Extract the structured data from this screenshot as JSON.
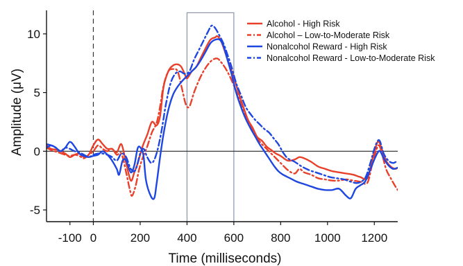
{
  "chart_data": {
    "type": "line",
    "title": "",
    "xlabel": "Time (milliseconds)",
    "ylabel": "Amplitude (μV)",
    "xlim": [
      -200,
      1300
    ],
    "ylim": [
      -6,
      12
    ],
    "x_ticks": [
      -100,
      0,
      200,
      400,
      600,
      800,
      1000,
      1200
    ],
    "y_ticks": [
      -5,
      0,
      5,
      10
    ],
    "zero_line": true,
    "stimulus_onset_line": {
      "x": 0,
      "style": "dashed"
    },
    "highlight_window": {
      "x_start": 400,
      "x_end": 600,
      "y_top": 11.8
    },
    "legend_position": "top-right",
    "series": [
      {
        "name": "Alcohol - High Risk",
        "color": "#e8402a",
        "dash": "solid",
        "points": [
          [
            -200,
            0.5
          ],
          [
            -180,
            0.2
          ],
          [
            -150,
            0.1
          ],
          [
            -120,
            -0.2
          ],
          [
            -100,
            -0.5
          ],
          [
            -80,
            -0.3
          ],
          [
            -60,
            -0.2
          ],
          [
            -40,
            -0.5
          ],
          [
            -20,
            -0.3
          ],
          [
            0,
            0.5
          ],
          [
            20,
            1.0
          ],
          [
            40,
            0.6
          ],
          [
            60,
            0.2
          ],
          [
            80,
            0.2
          ],
          [
            100,
            -0.1
          ],
          [
            120,
            0.6
          ],
          [
            140,
            -1.0
          ],
          [
            160,
            -2.5
          ],
          [
            175,
            -1.8
          ],
          [
            190,
            -1.0
          ],
          [
            210,
            0.4
          ],
          [
            230,
            1.4
          ],
          [
            250,
            2.5
          ],
          [
            270,
            2.2
          ],
          [
            285,
            3.0
          ],
          [
            300,
            5.5
          ],
          [
            320,
            6.8
          ],
          [
            340,
            7.3
          ],
          [
            360,
            7.4
          ],
          [
            375,
            7.2
          ],
          [
            390,
            6.6
          ],
          [
            400,
            6.2
          ],
          [
            420,
            6.8
          ],
          [
            440,
            7.2
          ],
          [
            460,
            8.0
          ],
          [
            480,
            8.8
          ],
          [
            500,
            9.5
          ],
          [
            520,
            9.7
          ],
          [
            530,
            9.8
          ],
          [
            545,
            9.4
          ],
          [
            560,
            8.6
          ],
          [
            580,
            7.4
          ],
          [
            600,
            6.3
          ],
          [
            620,
            5.0
          ],
          [
            640,
            3.8
          ],
          [
            660,
            2.7
          ],
          [
            680,
            2.0
          ],
          [
            700,
            1.2
          ],
          [
            720,
            0.9
          ],
          [
            740,
            0.4
          ],
          [
            760,
            0.1
          ],
          [
            780,
            -0.2
          ],
          [
            800,
            -0.4
          ],
          [
            830,
            -0.8
          ],
          [
            860,
            -0.7
          ],
          [
            880,
            -0.5
          ],
          [
            900,
            -0.6
          ],
          [
            930,
            -0.9
          ],
          [
            960,
            -1.3
          ],
          [
            990,
            -1.5
          ],
          [
            1020,
            -1.7
          ],
          [
            1050,
            -1.8
          ],
          [
            1080,
            -1.9
          ],
          [
            1110,
            -2.0
          ],
          [
            1140,
            -2.2
          ],
          [
            1170,
            -2.3
          ],
          [
            1190,
            -0.8
          ],
          [
            1210,
            0.6
          ],
          [
            1220,
            0.8
          ],
          [
            1230,
            0.3
          ],
          [
            1250,
            -0.8
          ],
          [
            1270,
            -1.3
          ],
          [
            1290,
            -1.5
          ],
          [
            1300,
            -1.4
          ]
        ]
      },
      {
        "name": "Alcohol – Low-to-Moderate Risk",
        "color": "#e8402a",
        "dash": "dashdot",
        "points": [
          [
            -200,
            0.3
          ],
          [
            -180,
            0.1
          ],
          [
            -150,
            -0.1
          ],
          [
            -120,
            -0.3
          ],
          [
            -100,
            -0.4
          ],
          [
            -80,
            -0.3
          ],
          [
            -60,
            -0.4
          ],
          [
            -40,
            -0.6
          ],
          [
            -20,
            -0.3
          ],
          [
            0,
            0.0
          ],
          [
            20,
            0.5
          ],
          [
            40,
            0.2
          ],
          [
            60,
            0.0
          ],
          [
            80,
            0.2
          ],
          [
            100,
            -0.3
          ],
          [
            120,
            -0.2
          ],
          [
            140,
            -1.8
          ],
          [
            155,
            -3.2
          ],
          [
            165,
            -3.8
          ],
          [
            180,
            -3.0
          ],
          [
            195,
            -1.6
          ],
          [
            210,
            -0.6
          ],
          [
            230,
            0.4
          ],
          [
            250,
            1.6
          ],
          [
            270,
            2.4
          ],
          [
            285,
            3.8
          ],
          [
            300,
            5.6
          ],
          [
            320,
            6.8
          ],
          [
            340,
            7.0
          ],
          [
            360,
            6.8
          ],
          [
            380,
            5.2
          ],
          [
            395,
            4.0
          ],
          [
            410,
            3.8
          ],
          [
            430,
            5.0
          ],
          [
            450,
            6.0
          ],
          [
            470,
            6.8
          ],
          [
            490,
            7.4
          ],
          [
            510,
            7.8
          ],
          [
            530,
            7.9
          ],
          [
            545,
            7.6
          ],
          [
            560,
            7.2
          ],
          [
            580,
            6.5
          ],
          [
            600,
            5.6
          ],
          [
            620,
            4.6
          ],
          [
            640,
            3.6
          ],
          [
            660,
            2.6
          ],
          [
            680,
            1.8
          ],
          [
            700,
            1.1
          ],
          [
            720,
            0.6
          ],
          [
            740,
            0.2
          ],
          [
            760,
            -0.2
          ],
          [
            780,
            -0.6
          ],
          [
            800,
            -1.0
          ],
          [
            830,
            -1.6
          ],
          [
            860,
            -1.9
          ],
          [
            880,
            -1.5
          ],
          [
            900,
            -1.8
          ],
          [
            930,
            -2.0
          ],
          [
            960,
            -2.3
          ],
          [
            990,
            -2.4
          ],
          [
            1020,
            -2.5
          ],
          [
            1050,
            -2.5
          ],
          [
            1080,
            -2.4
          ],
          [
            1110,
            -2.5
          ],
          [
            1140,
            -2.6
          ],
          [
            1170,
            -2.7
          ],
          [
            1190,
            -1.2
          ],
          [
            1210,
            0.2
          ],
          [
            1220,
            0.5
          ],
          [
            1230,
            0.0
          ],
          [
            1250,
            -1.5
          ],
          [
            1270,
            -2.3
          ],
          [
            1290,
            -3.0
          ],
          [
            1300,
            -3.3
          ]
        ]
      },
      {
        "name": "Nonalcohol Reward - High Risk",
        "color": "#1e46e0",
        "dash": "solid",
        "points": [
          [
            -200,
            0.3
          ],
          [
            -180,
            0.5
          ],
          [
            -160,
            0.3
          ],
          [
            -140,
            0.0
          ],
          [
            -120,
            0.3
          ],
          [
            -100,
            0.8
          ],
          [
            -80,
            0.4
          ],
          [
            -60,
            -0.2
          ],
          [
            -40,
            -0.4
          ],
          [
            -20,
            -0.5
          ],
          [
            0,
            -0.4
          ],
          [
            20,
            -0.3
          ],
          [
            40,
            0.0
          ],
          [
            60,
            -0.3
          ],
          [
            80,
            -0.8
          ],
          [
            100,
            -1.5
          ],
          [
            110,
            -2.0
          ],
          [
            125,
            -0.8
          ],
          [
            140,
            -0.8
          ],
          [
            160,
            -1.8
          ],
          [
            175,
            -1.2
          ],
          [
            190,
            0.3
          ],
          [
            205,
            0.2
          ],
          [
            215,
            -0.5
          ],
          [
            225,
            -2.5
          ],
          [
            245,
            -3.8
          ],
          [
            260,
            -4.0
          ],
          [
            270,
            -2.8
          ],
          [
            285,
            -0.5
          ],
          [
            300,
            1.5
          ],
          [
            320,
            3.5
          ],
          [
            340,
            4.8
          ],
          [
            360,
            5.5
          ],
          [
            380,
            6.0
          ],
          [
            400,
            6.4
          ],
          [
            420,
            6.8
          ],
          [
            440,
            7.2
          ],
          [
            460,
            7.8
          ],
          [
            480,
            8.5
          ],
          [
            500,
            9.2
          ],
          [
            520,
            9.5
          ],
          [
            540,
            9.5
          ],
          [
            555,
            9.0
          ],
          [
            570,
            8.0
          ],
          [
            590,
            6.6
          ],
          [
            610,
            5.0
          ],
          [
            630,
            3.8
          ],
          [
            650,
            2.8
          ],
          [
            670,
            2.0
          ],
          [
            690,
            1.3
          ],
          [
            710,
            0.6
          ],
          [
            730,
            0.0
          ],
          [
            750,
            -0.6
          ],
          [
            770,
            -1.2
          ],
          [
            790,
            -1.7
          ],
          [
            810,
            -2.0
          ],
          [
            840,
            -2.3
          ],
          [
            870,
            -2.6
          ],
          [
            900,
            -2.8
          ],
          [
            930,
            -3.0
          ],
          [
            960,
            -3.2
          ],
          [
            990,
            -3.3
          ],
          [
            1020,
            -3.3
          ],
          [
            1050,
            -3.2
          ],
          [
            1080,
            -3.8
          ],
          [
            1100,
            -4.0
          ],
          [
            1120,
            -3.2
          ],
          [
            1140,
            -2.9
          ],
          [
            1160,
            -2.6
          ],
          [
            1180,
            -1.7
          ],
          [
            1200,
            -0.7
          ],
          [
            1215,
            -0.1
          ],
          [
            1225,
            0.0
          ],
          [
            1240,
            -0.6
          ],
          [
            1260,
            -1.2
          ],
          [
            1280,
            -1.5
          ],
          [
            1300,
            -1.4
          ]
        ]
      },
      {
        "name": "Nonalcohol Reward - Low-to-Moderate Risk",
        "color": "#1e46e0",
        "dash": "dashdot",
        "points": [
          [
            -200,
            0.6
          ],
          [
            -180,
            0.5
          ],
          [
            -160,
            0.3
          ],
          [
            -140,
            0.0
          ],
          [
            -120,
            0.3
          ],
          [
            -100,
            0.2
          ],
          [
            -80,
            0.0
          ],
          [
            -60,
            -0.1
          ],
          [
            -40,
            -0.3
          ],
          [
            -20,
            -0.5
          ],
          [
            0,
            -0.3
          ],
          [
            20,
            -0.2
          ],
          [
            40,
            -0.2
          ],
          [
            60,
            -0.3
          ],
          [
            80,
            -0.5
          ],
          [
            100,
            -0.8
          ],
          [
            120,
            -0.2
          ],
          [
            140,
            -0.5
          ],
          [
            160,
            -1.5
          ],
          [
            180,
            -1.6
          ],
          [
            200,
            -0.2
          ],
          [
            215,
            0.2
          ],
          [
            230,
            -0.5
          ],
          [
            250,
            -1.0
          ],
          [
            270,
            -0.2
          ],
          [
            290,
            1.6
          ],
          [
            310,
            4.0
          ],
          [
            330,
            5.8
          ],
          [
            350,
            6.6
          ],
          [
            370,
            6.8
          ],
          [
            390,
            6.6
          ],
          [
            410,
            6.8
          ],
          [
            430,
            7.8
          ],
          [
            450,
            8.6
          ],
          [
            470,
            9.4
          ],
          [
            490,
            10.2
          ],
          [
            505,
            10.7
          ],
          [
            520,
            10.5
          ],
          [
            540,
            9.8
          ],
          [
            555,
            9.2
          ],
          [
            570,
            8.4
          ],
          [
            590,
            7.2
          ],
          [
            610,
            5.8
          ],
          [
            630,
            4.8
          ],
          [
            650,
            3.8
          ],
          [
            670,
            3.2
          ],
          [
            690,
            2.7
          ],
          [
            710,
            2.3
          ],
          [
            730,
            1.9
          ],
          [
            750,
            1.6
          ],
          [
            770,
            1.1
          ],
          [
            790,
            0.6
          ],
          [
            810,
            -0.1
          ],
          [
            830,
            -0.6
          ],
          [
            860,
            -0.9
          ],
          [
            890,
            -1.3
          ],
          [
            920,
            -1.6
          ],
          [
            950,
            -1.8
          ],
          [
            980,
            -2.0
          ],
          [
            1010,
            -2.2
          ],
          [
            1040,
            -2.3
          ],
          [
            1070,
            -2.4
          ],
          [
            1100,
            -2.6
          ],
          [
            1130,
            -2.7
          ],
          [
            1160,
            -2.3
          ],
          [
            1180,
            -1.2
          ],
          [
            1200,
            0.2
          ],
          [
            1215,
            0.9
          ],
          [
            1225,
            0.8
          ],
          [
            1240,
            -0.2
          ],
          [
            1260,
            -0.8
          ],
          [
            1280,
            -1.0
          ],
          [
            1300,
            -0.8
          ]
        ]
      }
    ]
  }
}
